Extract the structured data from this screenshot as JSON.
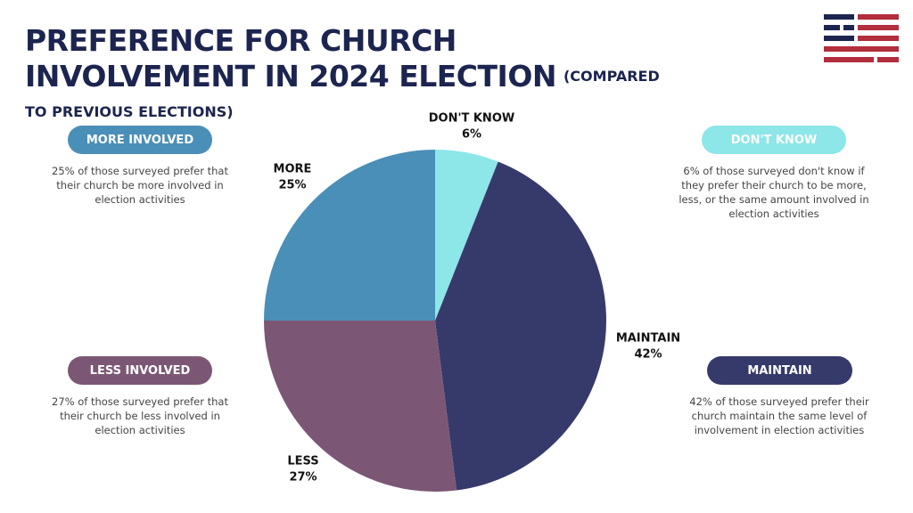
{
  "chart_data": {
    "type": "pie",
    "title": "PREFERENCE FOR CHURCH INVOLVEMENT IN 2024 ELECTION",
    "subtitle": "(COMPARED TO PREVIOUS ELECTIONS)",
    "categories": [
      "DON'T KNOW",
      "MAINTAIN",
      "LESS",
      "MORE"
    ],
    "values": [
      6,
      42,
      27,
      25
    ],
    "value_labels": [
      "6%",
      "42%",
      "27%",
      "25%"
    ],
    "colors": [
      "#8de6e8",
      "#363a6b",
      "#7b5775",
      "#4a8fb8"
    ],
    "annotations": [
      {
        "label": "MORE INVOLVED",
        "text": "25% of those surveyed prefer that their church be more involved in election activities",
        "color": "#4a8fb8"
      },
      {
        "label": "DON'T KNOW",
        "text": "6% of those surveyed don't know if they prefer their church to be more, less, or the same amount involved in election activities",
        "color": "#8de6e8"
      },
      {
        "label": "LESS INVOLVED",
        "text": "27% of those surveyed prefer that their church be less involved in election activities",
        "color": "#7b5775"
      },
      {
        "label": "MAINTAIN",
        "text": "42% of those surveyed prefer their church maintain the same level of involvement in election activities",
        "color": "#363a6b"
      }
    ]
  }
}
